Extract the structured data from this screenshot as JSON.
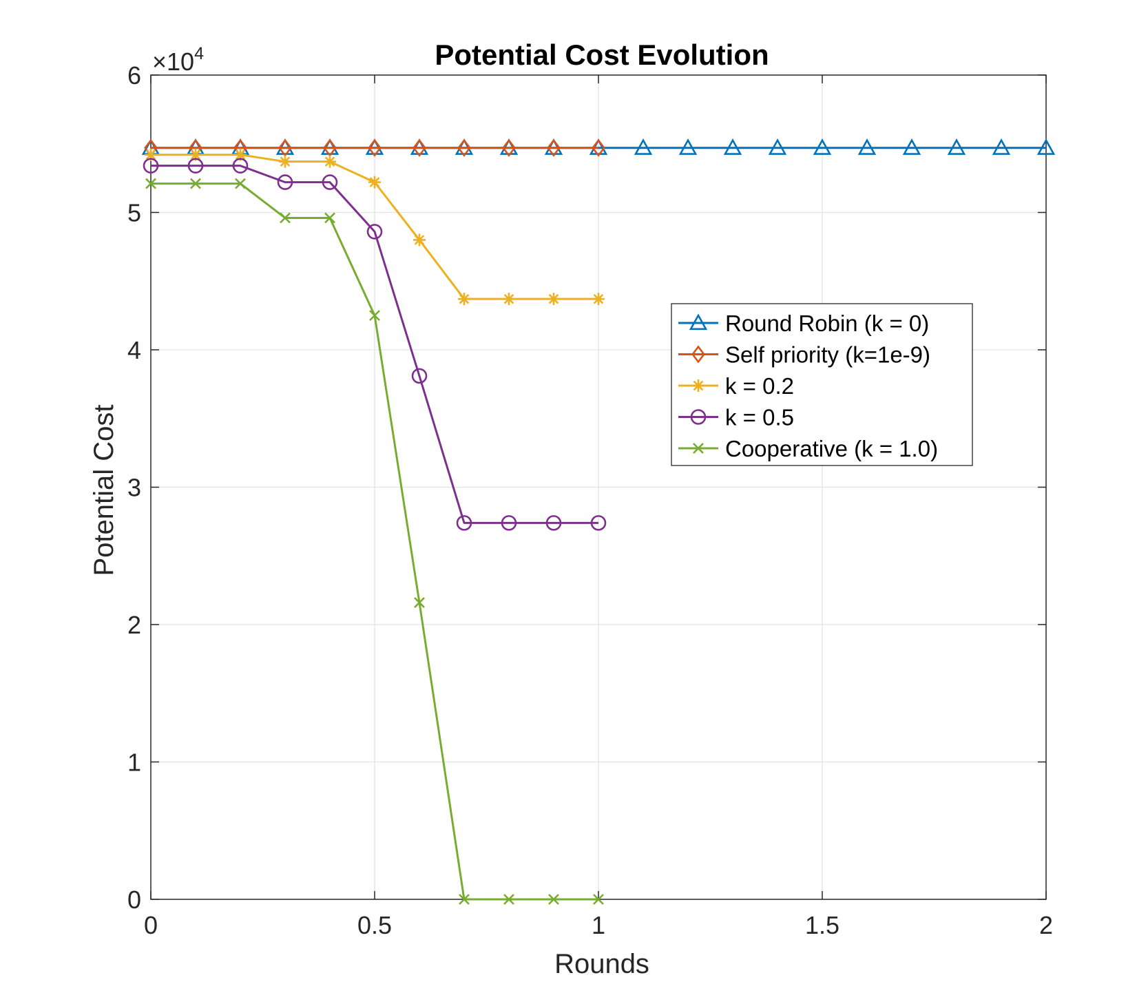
{
  "chart_data": {
    "type": "line",
    "title": "Potential Cost Evolution",
    "xlabel": "Rounds",
    "ylabel": "Potential Cost",
    "xlim": [
      0,
      2
    ],
    "ylim": [
      0,
      60000
    ],
    "xticks": [
      0,
      0.5,
      1,
      1.5,
      2
    ],
    "xtick_labels": [
      "0",
      "0.5",
      "1",
      "1.5",
      "2"
    ],
    "yticks": [
      0,
      10000,
      20000,
      30000,
      40000,
      50000,
      60000
    ],
    "ytick_labels": [
      "0",
      "1",
      "2",
      "3",
      "4",
      "5",
      "6"
    ],
    "y_exponent_label": "×10",
    "y_exponent_power": "4",
    "grid": true,
    "legend_position": "right-center",
    "series": [
      {
        "name": "Round Robin (k = 0)",
        "color": "#0072BD",
        "marker": "triangle",
        "x": [
          0,
          0.1,
          0.2,
          0.3,
          0.4,
          0.5,
          0.6,
          0.7,
          0.8,
          0.9,
          1.0,
          1.1,
          1.2,
          1.3,
          1.4,
          1.5,
          1.6,
          1.7,
          1.8,
          1.9,
          2.0
        ],
        "y": [
          54700,
          54700,
          54700,
          54700,
          54700,
          54700,
          54700,
          54700,
          54700,
          54700,
          54700,
          54700,
          54700,
          54700,
          54700,
          54700,
          54700,
          54700,
          54700,
          54700,
          54700
        ]
      },
      {
        "name": "Self priority (k=1e-9)",
        "color": "#D95319",
        "marker": "diamond",
        "x": [
          0,
          0.1,
          0.2,
          0.3,
          0.4,
          0.5,
          0.6,
          0.7,
          0.8,
          0.9,
          1.0
        ],
        "y": [
          54700,
          54700,
          54700,
          54700,
          54700,
          54700,
          54700,
          54700,
          54700,
          54700,
          54700
        ]
      },
      {
        "name": "k = 0.2",
        "color": "#EDB120",
        "marker": "asterisk",
        "x": [
          0,
          0.1,
          0.2,
          0.3,
          0.4,
          0.5,
          0.6,
          0.7,
          0.8,
          0.9,
          1.0
        ],
        "y": [
          54200,
          54200,
          54200,
          53700,
          53700,
          52200,
          48000,
          43700,
          43700,
          43700,
          43700
        ]
      },
      {
        "name": "k = 0.5",
        "color": "#7E2F8E",
        "marker": "circle",
        "x": [
          0,
          0.1,
          0.2,
          0.3,
          0.4,
          0.5,
          0.6,
          0.7,
          0.8,
          0.9,
          1.0
        ],
        "y": [
          53400,
          53400,
          53400,
          52200,
          52200,
          48600,
          38100,
          27400,
          27400,
          27400,
          27400
        ]
      },
      {
        "name": "Cooperative (k = 1.0)",
        "color": "#77AC30",
        "marker": "x",
        "x": [
          0,
          0.1,
          0.2,
          0.3,
          0.4,
          0.5,
          0.6,
          0.7,
          0.8,
          0.9,
          1.0
        ],
        "y": [
          52100,
          52100,
          52100,
          49600,
          49600,
          42500,
          21600,
          0,
          0,
          0,
          0
        ]
      }
    ]
  }
}
